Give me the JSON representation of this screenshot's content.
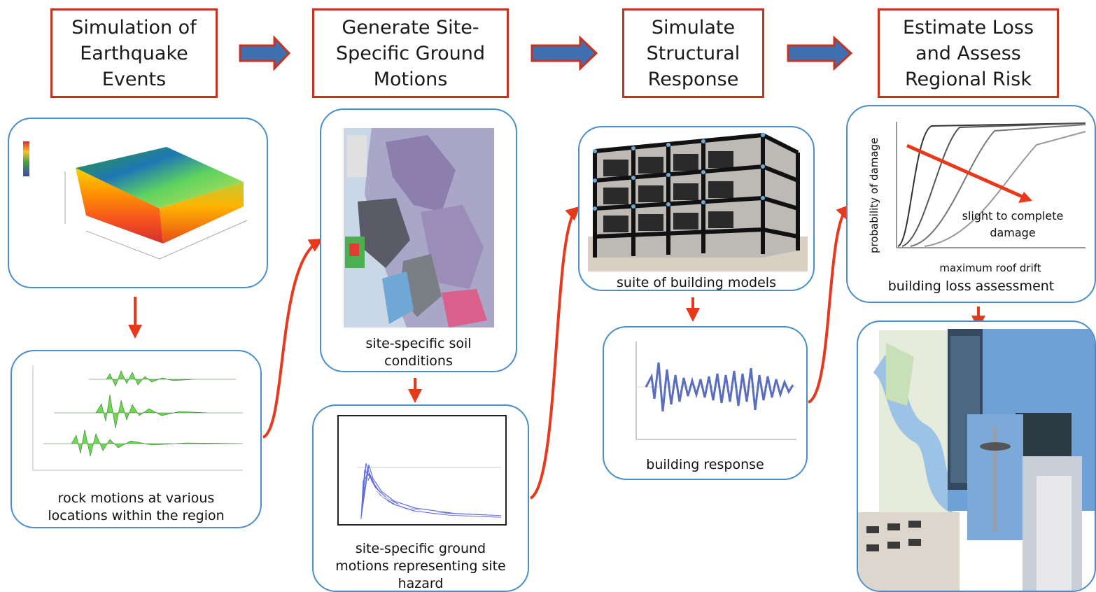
{
  "stages": [
    {
      "lines": [
        "Simulation of",
        "Earthquake",
        "Events"
      ]
    },
    {
      "lines": [
        "Generate Site-",
        "Specific Ground",
        "Motions"
      ]
    },
    {
      "lines": [
        "Simulate",
        "Structural",
        "Response"
      ]
    },
    {
      "lines": [
        "Estimate Loss",
        "and Assess",
        "Regional Risk"
      ]
    }
  ],
  "panels": {
    "earthquake_model": {
      "caption": []
    },
    "rock_motions": {
      "caption": [
        "rock motions at various",
        "locations within the region"
      ]
    },
    "soil_map": {
      "caption": [
        "site-specific soil",
        "conditions"
      ]
    },
    "ground_motions": {
      "caption": [
        "site-specific ground",
        "motions representing site",
        "hazard"
      ]
    },
    "building_models": {
      "caption": [
        "suite of building models"
      ]
    },
    "building_response": {
      "caption": [
        "building response"
      ]
    },
    "loss_assessment": {
      "caption": [
        "building loss assessment"
      ],
      "ylabel": "probability of damage",
      "xlabel": "maximum roof drift",
      "annotation": [
        "slight to complete",
        "damage"
      ]
    },
    "regional_risk": {
      "caption": []
    }
  },
  "colors": {
    "stage_border": "#c8331f",
    "arrow_fill": "#3f6fb0",
    "arrow_border": "#c8331f",
    "connector": "#e8391c",
    "card_border": "#4a8ec9"
  }
}
